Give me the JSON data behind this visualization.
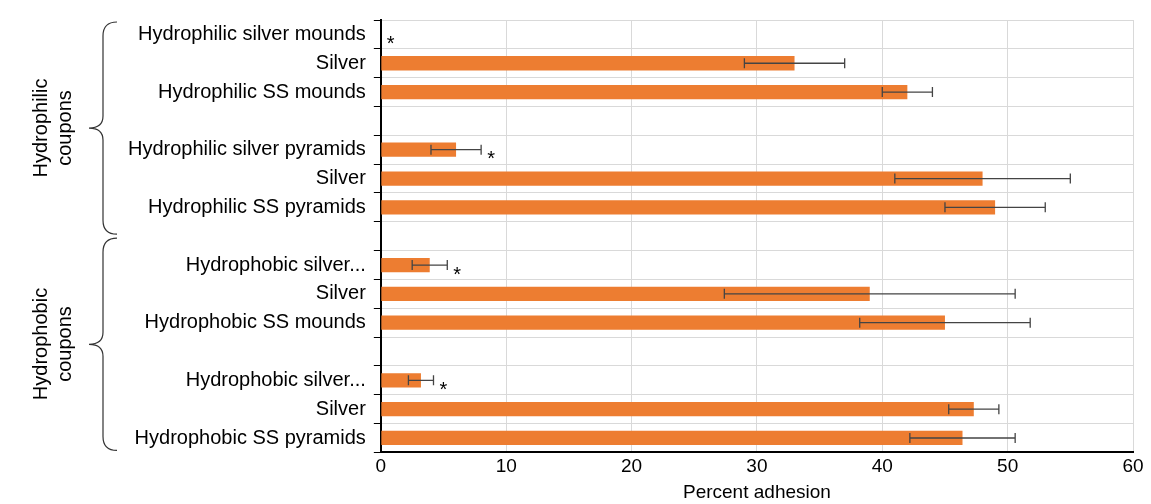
{
  "chart_data": {
    "type": "bar",
    "orientation": "horizontal",
    "xlabel": "Percent adhesion",
    "categories": [
      "Hydrophilic silver mounds",
      "Silver",
      "Hydrophilic SS mounds",
      null,
      "Hydrophilic silver pyramids",
      "Silver",
      "Hydrophilic SS pyramids",
      null,
      "Hydrophobic silver...",
      "Silver",
      "Hydrophobic SS mounds",
      null,
      "Hydrophobic silver...",
      "Silver",
      "Hydrophobic SS pyramids"
    ],
    "values": [
      0,
      33,
      42,
      null,
      6,
      48,
      49,
      null,
      3.9,
      39,
      45,
      null,
      3.2,
      47.3,
      46.4
    ],
    "errors": [
      null,
      4,
      2,
      null,
      2,
      7,
      4,
      null,
      1.4,
      11.6,
      6.8,
      null,
      1,
      2,
      4.2
    ],
    "value_labels": [
      "*",
      null,
      null,
      null,
      "*",
      null,
      null,
      null,
      "*",
      null,
      null,
      null,
      "*",
      null,
      null
    ],
    "color": "#ed7d31",
    "xlim": [
      0,
      60
    ],
    "xticks": [
      0,
      10,
      20,
      30,
      40,
      50,
      60
    ],
    "grid": true,
    "legend": false,
    "annotations": [
      "Hydrophilic coupons",
      "Hydrophobic coupons"
    ]
  }
}
